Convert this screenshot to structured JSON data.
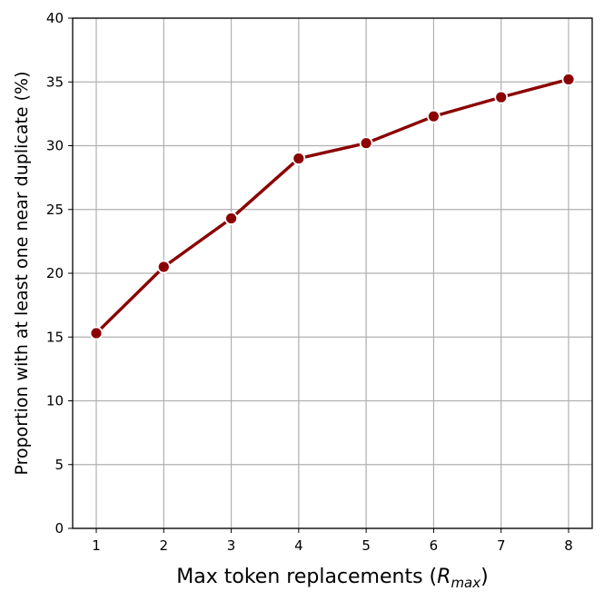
{
  "chart_data": {
    "type": "line",
    "title": "",
    "xlabel_main": "Max token replacements (",
    "xlabel_var": "R",
    "xlabel_sub": "max",
    "xlabel_end": ")",
    "ylabel": "Proportion with at least one near duplicate (%)",
    "x": [
      1,
      2,
      3,
      4,
      5,
      6,
      7,
      8
    ],
    "series": [
      {
        "values": [
          15.3,
          20.5,
          24.3,
          29.0,
          30.2,
          32.3,
          33.8,
          35.2
        ],
        "color": "#8b0000",
        "marker": "circle",
        "marker_edge_color": "#ffffff"
      }
    ],
    "xlim": [
      0.65,
      8.35
    ],
    "ylim": [
      0,
      40
    ],
    "xticks": [
      "1",
      "2",
      "3",
      "4",
      "5",
      "6",
      "7",
      "8"
    ],
    "yticks": [
      "0",
      "5",
      "10",
      "15",
      "20",
      "25",
      "30",
      "35",
      "40"
    ],
    "grid": true,
    "legend": "none"
  }
}
